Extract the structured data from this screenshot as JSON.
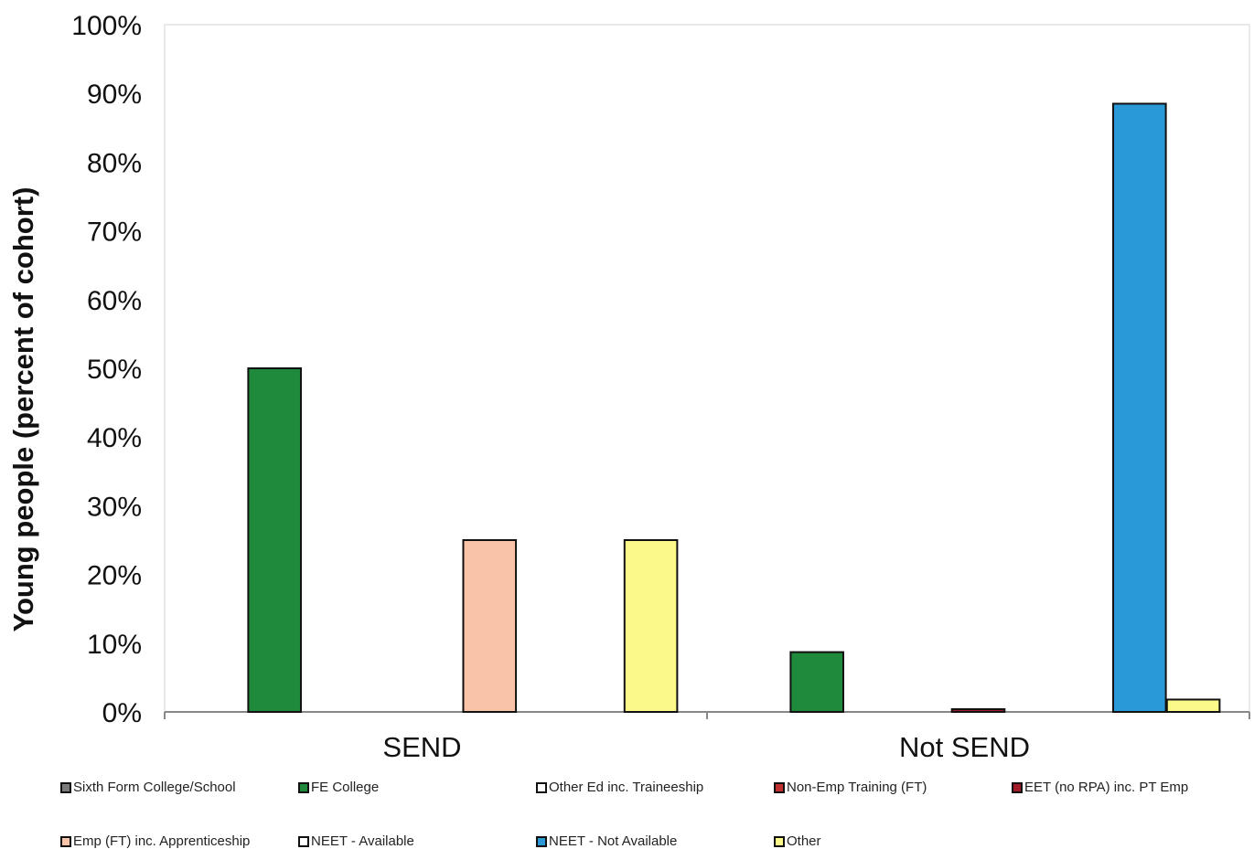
{
  "chart_data": {
    "type": "bar",
    "ylabel": "Young people (percent of cohort)",
    "xlabel": "",
    "ylim": [
      0,
      100
    ],
    "yticks": [
      "0%",
      "10%",
      "20%",
      "30%",
      "40%",
      "50%",
      "60%",
      "70%",
      "80%",
      "90%",
      "100%"
    ],
    "categories": [
      "SEND",
      "Not SEND"
    ],
    "grid": false,
    "legend_position": "bottom",
    "series": [
      {
        "name": "Sixth Form College/School",
        "color": "#7a7a7a",
        "values": [
          0,
          0
        ]
      },
      {
        "name": "FE College",
        "color": "#1f8a3c",
        "values": [
          50,
          8.7
        ]
      },
      {
        "name": "Other Ed inc. Traineeship",
        "color": "#ffffff",
        "values": [
          0,
          0
        ]
      },
      {
        "name": "Non-Emp Training (FT)",
        "color": "#c03030",
        "values": [
          0,
          0
        ]
      },
      {
        "name": "EET (no RPA) inc. PT Emp",
        "color": "#a01c2a",
        "values": [
          0,
          0.4
        ]
      },
      {
        "name": "Emp (FT) inc. Apprenticeship",
        "color": "#f9c3a8",
        "values": [
          25,
          0
        ]
      },
      {
        "name": "NEET - Available",
        "color": "#ffffff",
        "values": [
          0,
          0
        ]
      },
      {
        "name": "NEET - Not Available",
        "color": "#2a9ad6",
        "values": [
          0,
          88.5
        ]
      },
      {
        "name": "Other",
        "color": "#fbf98a",
        "values": [
          25,
          1.8
        ]
      }
    ],
    "bars_drawn": [
      {
        "category": "SEND",
        "series": "FE College",
        "value": 50
      },
      {
        "category": "SEND",
        "series": "Emp (FT) inc. Apprenticeship",
        "value": 25
      },
      {
        "category": "SEND",
        "series": "Other",
        "value": 25
      },
      {
        "category": "Not SEND",
        "series": "NEET - Not Available",
        "value": 88.5
      },
      {
        "category": "Not SEND",
        "series": "FE College",
        "value": 8.7
      },
      {
        "category": "Not SEND",
        "series": "EET (no RPA) inc. PT Emp",
        "value": 0.4
      },
      {
        "category": "Not SEND",
        "series": "Other",
        "value": 1.8
      }
    ]
  }
}
